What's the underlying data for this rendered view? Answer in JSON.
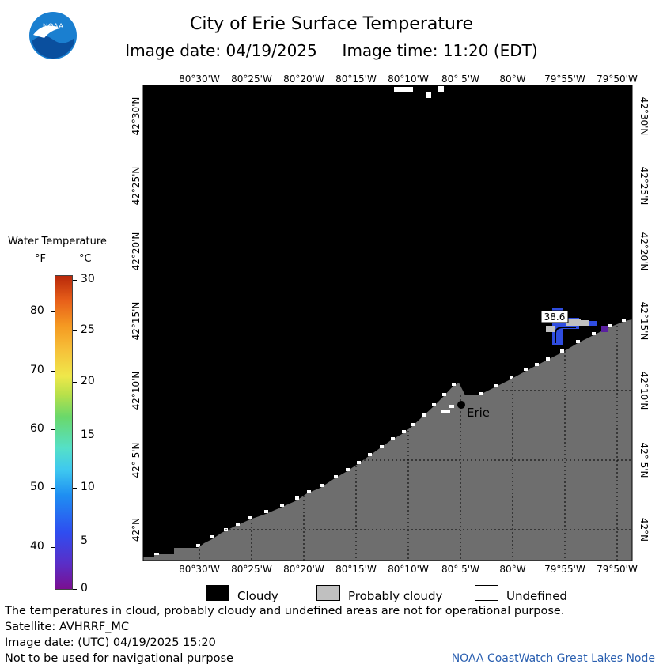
{
  "header": {
    "title": "City of Erie Surface Temperature",
    "subtitle": "Image date: 04/19/2025     Image time: 11:20 (EDT)",
    "logo_text": "NOAA"
  },
  "map": {
    "lon_ticks": [
      "80°30'W",
      "80°25'W",
      "80°20'W",
      "80°15'W",
      "80°10'W",
      "80° 5'W",
      "80°W",
      "79°55'W",
      "79°50'W"
    ],
    "lat_ticks": [
      "42°30'N",
      "42°25'N",
      "42°20'N",
      "42°15'N",
      "42°10'N",
      "42° 5'N",
      "42°N"
    ],
    "city_label": "Erie",
    "temp_label": "38.6",
    "colors": {
      "cloudy": "#000000",
      "land": "#6e6e6e",
      "probably_cloudy": "#c0c0c0",
      "undefined": "#ffffff",
      "water_cold": "#2f4de0",
      "water_coldest": "#5a20a0"
    }
  },
  "legend": {
    "title": "Water Temperature",
    "unit_f": "°F",
    "unit_c": "°C",
    "f_labels": [
      "80",
      "70",
      "60",
      "50",
      "40"
    ],
    "c_labels": [
      "30",
      "25",
      "20",
      "15",
      "10",
      "5",
      "0"
    ]
  },
  "key": {
    "cloudy": "Cloudy",
    "probably_cloudy": "Probably cloudy",
    "undefined": "Undefined"
  },
  "footer": {
    "disclaimer": "The temperatures in cloud, probably cloudy and undefined areas are not for operational purpose.",
    "satellite": "Satellite: AVHRRF_MC",
    "utc_date": "Image date: (UTC) 04/19/2025  15:20",
    "nav_warning": "Not to be used for navigational purpose",
    "credit": "NOAA CoastWatch Great Lakes Node"
  }
}
